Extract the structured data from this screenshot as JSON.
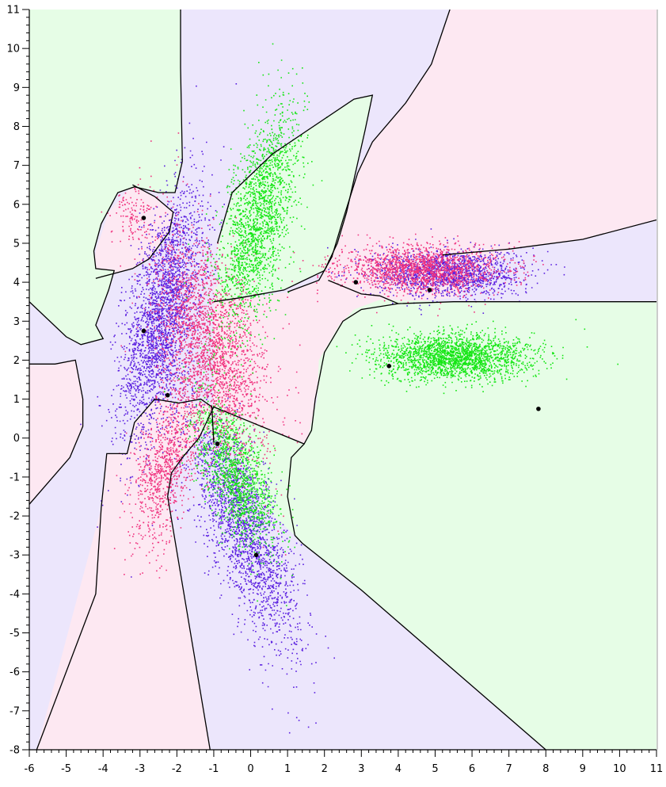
{
  "chart_data": {
    "type": "scatter",
    "title": "",
    "xlabel": "",
    "ylabel": "",
    "xlim": [
      -6,
      11
    ],
    "ylim": [
      -8,
      11
    ],
    "x_ticks": [
      "-6",
      "-5",
      "-4",
      "-3",
      "-2",
      "-1",
      "0",
      "1",
      "2",
      "3",
      "4",
      "5",
      "6",
      "7",
      "8",
      "9",
      "10",
      "11"
    ],
    "y_ticks": [
      "-8",
      "-7",
      "-6",
      "-5",
      "-4",
      "-3",
      "-2",
      "-1",
      "0",
      "1",
      "2",
      "3",
      "4",
      "5",
      "6",
      "7",
      "8",
      "9",
      "10",
      "11"
    ],
    "grid": false,
    "colors": {
      "blue": "#5a1fe0",
      "pink": "#f0337f",
      "green": "#14e614",
      "region_blue": "#ece6fc",
      "region_pink": "#fde8f2",
      "region_green": "#e6fde6",
      "boundary": "#000000",
      "center": "#000000"
    },
    "clusters": [
      {
        "color": "blue",
        "cx": -2.4,
        "cy": 3.2,
        "sx": 0.55,
        "sy": 1.55,
        "rho": 0.55,
        "n": 2600
      },
      {
        "color": "blue",
        "cx": -0.2,
        "cy": -2.3,
        "sx": 0.75,
        "sy": 1.5,
        "rho": -0.75,
        "n": 2100
      },
      {
        "color": "blue",
        "cx": 5.3,
        "cy": 4.25,
        "sx": 1.0,
        "sy": 0.3,
        "rho": 0.0,
        "n": 1600
      },
      {
        "color": "pink",
        "cx": -1.1,
        "cy": 2.3,
        "sx": 0.75,
        "sy": 1.4,
        "rho": -0.45,
        "n": 2500
      },
      {
        "color": "pink",
        "cx": -2.3,
        "cy": -0.7,
        "sx": 0.45,
        "sy": 1.0,
        "rho": 0.5,
        "n": 900
      },
      {
        "color": "pink",
        "cx": 4.6,
        "cy": 4.35,
        "sx": 1.1,
        "sy": 0.3,
        "rho": 0.0,
        "n": 1600
      },
      {
        "color": "pink",
        "cx": -3.2,
        "cy": 5.8,
        "sx": 0.3,
        "sy": 0.35,
        "rho": 0.0,
        "n": 120
      },
      {
        "color": "green",
        "cx": 0.2,
        "cy": 5.6,
        "sx": 0.55,
        "sy": 1.5,
        "rho": 0.6,
        "n": 1900
      },
      {
        "color": "green",
        "cx": -0.4,
        "cy": -1.0,
        "sx": 0.55,
        "sy": 0.9,
        "rho": -0.6,
        "n": 1300
      },
      {
        "color": "green",
        "cx": 5.5,
        "cy": 2.1,
        "sx": 1.05,
        "sy": 0.3,
        "rho": 0.0,
        "n": 2100
      }
    ],
    "centers": [
      {
        "x": -2.9,
        "y": 5.65
      },
      {
        "x": -2.9,
        "y": 2.75
      },
      {
        "x": -2.25,
        "y": 1.1
      },
      {
        "x": -0.9,
        "y": -0.15
      },
      {
        "x": 0.15,
        "y": -3.0
      },
      {
        "x": 2.85,
        "y": 4.0
      },
      {
        "x": 3.75,
        "y": 1.85
      },
      {
        "x": 4.85,
        "y": 3.8
      },
      {
        "x": 7.8,
        "y": 0.75
      }
    ],
    "regions": [
      {
        "color": "region_blue",
        "points": [
          [
            -6,
            11
          ],
          [
            11,
            11
          ],
          [
            11,
            -8
          ],
          [
            -6,
            -8
          ]
        ]
      },
      {
        "color": "region_pink",
        "points": [
          [
            -6,
            1.9
          ],
          [
            -5.3,
            1.9
          ],
          [
            -4.75,
            2.0
          ],
          [
            -4.55,
            1.0
          ],
          [
            -4.55,
            0.3
          ],
          [
            -4.9,
            -0.5
          ],
          [
            -6,
            -1.7
          ]
        ]
      },
      {
        "color": "region_pink",
        "points": [
          [
            -3.9,
            -0.4
          ],
          [
            -4.05,
            -1.8
          ],
          [
            -5.8,
            -8
          ],
          [
            -1.1,
            -8
          ],
          [
            -2.25,
            -1.5
          ],
          [
            -2.15,
            -0.9
          ],
          [
            -1.85,
            -0.5
          ],
          [
            -1.4,
            0.0
          ],
          [
            -1.0,
            0.8
          ],
          [
            -1.25,
            0.9
          ],
          [
            -1.95,
            0.9
          ],
          [
            -2.6,
            1.0
          ],
          [
            -3.15,
            0.4
          ],
          [
            -3.35,
            -0.4
          ]
        ]
      },
      {
        "color": "region_pink",
        "points": [
          [
            -3.2,
            6.5
          ],
          [
            -2.6,
            6.2
          ],
          [
            -2.1,
            5.8
          ],
          [
            -2.2,
            5.3
          ],
          [
            -2.75,
            4.6
          ],
          [
            -3.2,
            4.35
          ],
          [
            -4.3,
            4.1
          ],
          [
            -4.2,
            4.8
          ],
          [
            -3.85,
            5.8
          ]
        ]
      },
      {
        "color": "region_pink",
        "points": [
          [
            -1.0,
            0.8
          ],
          [
            -1.0,
            3.9
          ],
          [
            0.0,
            3.6
          ],
          [
            1.0,
            3.75
          ],
          [
            1.85,
            4.05
          ],
          [
            2.2,
            4.65
          ],
          [
            2.5,
            5.6
          ],
          [
            2.9,
            6.8
          ],
          [
            3.3,
            7.6
          ],
          [
            4.2,
            8.6
          ],
          [
            4.9,
            9.6
          ],
          [
            5.4,
            11
          ],
          [
            11,
            11
          ],
          [
            11,
            5.6
          ],
          [
            9.0,
            5.1
          ],
          [
            7.0,
            4.85
          ],
          [
            5.5,
            3.6
          ],
          [
            4.0,
            3.45
          ],
          [
            3.0,
            3.3
          ],
          [
            2.5,
            3.0
          ],
          [
            2.0,
            2.2
          ],
          [
            1.75,
            1.0
          ],
          [
            1.65,
            0.2
          ],
          [
            1.45,
            -0.15
          ]
        ]
      },
      {
        "color": "region_green",
        "points": [
          [
            -6,
            11
          ],
          [
            -1.9,
            11
          ],
          [
            -1.9,
            9.7
          ],
          [
            -1.85,
            7.1
          ],
          [
            -2.05,
            6.3
          ],
          [
            -2.5,
            6.3
          ],
          [
            -3.15,
            6.45
          ],
          [
            -3.6,
            6.3
          ],
          [
            -4.05,
            5.5
          ],
          [
            -4.25,
            4.8
          ],
          [
            -4.2,
            4.35
          ],
          [
            -3.7,
            4.3
          ],
          [
            -3.85,
            3.8
          ],
          [
            -4.2,
            2.9
          ],
          [
            -4.0,
            2.55
          ],
          [
            -4.6,
            2.4
          ],
          [
            -5.0,
            2.6
          ],
          [
            -6,
            3.5
          ]
        ]
      },
      {
        "color": "region_green",
        "points": [
          [
            -0.9,
            5.0
          ],
          [
            -0.5,
            6.3
          ],
          [
            0.6,
            7.3
          ],
          [
            2.8,
            8.7
          ],
          [
            3.3,
            8.8
          ],
          [
            3.1,
            7.9
          ],
          [
            2.6,
            5.8
          ],
          [
            2.35,
            5.0
          ],
          [
            2.0,
            4.3
          ],
          [
            0.9,
            3.8
          ],
          [
            -0.3,
            3.6
          ],
          [
            -0.9,
            3.5
          ]
        ]
      },
      {
        "color": "region_green",
        "points": [
          [
            11,
            3.5
          ],
          [
            5.5,
            3.5
          ],
          [
            3.5,
            3.55
          ],
          [
            2.8,
            3.3
          ],
          [
            2.4,
            2.9
          ],
          [
            1.85,
            2.0
          ],
          [
            1.8,
            1.0
          ],
          [
            1.55,
            0.0
          ],
          [
            1.45,
            -0.15
          ],
          [
            1.1,
            -0.5
          ],
          [
            1.0,
            -1.5
          ],
          [
            1.2,
            -2.5
          ],
          [
            1.4,
            -2.7
          ],
          [
            3.0,
            -3.9
          ],
          [
            8.0,
            -8
          ],
          [
            11,
            -8
          ]
        ]
      },
      {
        "color": "region_green",
        "points": [
          [
            -1.85,
            0.6
          ],
          [
            -1.0,
            0.8
          ],
          [
            1.45,
            -0.15
          ],
          [
            1.0,
            -1.5
          ],
          [
            1.2,
            -2.5
          ],
          [
            0.4,
            -1.8
          ],
          [
            -0.5,
            -0.3
          ],
          [
            -1.3,
            0.2
          ]
        ]
      }
    ],
    "boundaries": [
      [
        [
          -1.9,
          11
        ],
        [
          -1.9,
          9.5
        ],
        [
          -1.85,
          7.1
        ],
        [
          -2.05,
          6.3
        ],
        [
          -2.5,
          6.3
        ],
        [
          -3.15,
          6.45
        ],
        [
          -3.6,
          6.3
        ],
        [
          -4.05,
          5.5
        ],
        [
          -4.25,
          4.8
        ],
        [
          -4.2,
          4.35
        ],
        [
          -3.7,
          4.3
        ],
        [
          -3.85,
          3.8
        ],
        [
          -4.2,
          2.9
        ],
        [
          -4.0,
          2.55
        ],
        [
          -4.6,
          2.4
        ],
        [
          -5.0,
          2.6
        ],
        [
          -6,
          3.5
        ]
      ],
      [
        [
          -4.2,
          4.1
        ],
        [
          -3.2,
          4.35
        ],
        [
          -2.75,
          4.6
        ],
        [
          -2.2,
          5.3
        ],
        [
          -2.1,
          5.8
        ],
        [
          -2.6,
          6.2
        ],
        [
          -3.2,
          6.5
        ]
      ],
      [
        [
          -6,
          1.9
        ],
        [
          -5.3,
          1.9
        ],
        [
          -4.75,
          2.0
        ],
        [
          -4.55,
          1.0
        ],
        [
          -4.55,
          0.3
        ],
        [
          -4.9,
          -0.5
        ],
        [
          -6,
          -1.7
        ]
      ],
      [
        [
          -1.0,
          -0.1
        ],
        [
          -1.05,
          0.8
        ],
        [
          -1.35,
          1.0
        ],
        [
          -1.95,
          0.9
        ],
        [
          -2.6,
          1.0
        ],
        [
          -3.15,
          0.4
        ],
        [
          -3.35,
          -0.4
        ],
        [
          -3.9,
          -0.4
        ],
        [
          -4.05,
          -1.8
        ],
        [
          -4.2,
          -4.0
        ],
        [
          -5.8,
          -8
        ]
      ],
      [
        [
          -1.1,
          -8
        ],
        [
          -2.25,
          -1.5
        ],
        [
          -2.15,
          -0.9
        ],
        [
          -1.85,
          -0.5
        ],
        [
          -1.4,
          0.0
        ],
        [
          -1.0,
          0.8
        ],
        [
          1.45,
          -0.15
        ],
        [
          1.65,
          0.2
        ],
        [
          1.75,
          1.0
        ],
        [
          2.0,
          2.2
        ],
        [
          2.5,
          3.0
        ],
        [
          3.0,
          3.3
        ],
        [
          4.0,
          3.45
        ],
        [
          5.5,
          3.5
        ],
        [
          11,
          3.5
        ]
      ],
      [
        [
          -0.9,
          5.0
        ],
        [
          -0.5,
          6.3
        ],
        [
          0.6,
          7.3
        ],
        [
          2.8,
          8.7
        ],
        [
          3.3,
          8.8
        ],
        [
          3.1,
          7.9
        ],
        [
          2.6,
          5.8
        ],
        [
          2.35,
          5.0
        ],
        [
          2.0,
          4.3
        ],
        [
          0.9,
          3.8
        ],
        [
          -0.3,
          3.6
        ],
        [
          -1.0,
          3.5
        ]
      ],
      [
        [
          1.0,
          3.75
        ],
        [
          1.85,
          4.05
        ],
        [
          2.2,
          4.65
        ],
        [
          2.5,
          5.6
        ],
        [
          2.9,
          6.8
        ],
        [
          3.3,
          7.6
        ],
        [
          4.2,
          8.6
        ],
        [
          4.9,
          9.6
        ],
        [
          5.4,
          11
        ]
      ],
      [
        [
          2.1,
          4.05
        ],
        [
          3.0,
          3.7
        ],
        [
          3.5,
          3.65
        ],
        [
          4.0,
          3.45
        ]
      ],
      [
        [
          5.2,
          4.7
        ],
        [
          7.0,
          4.85
        ],
        [
          9.0,
          5.1
        ],
        [
          11,
          5.6
        ]
      ],
      [
        [
          1.45,
          -0.15
        ],
        [
          1.1,
          -0.5
        ],
        [
          1.0,
          -1.5
        ],
        [
          1.2,
          -2.5
        ],
        [
          1.4,
          -2.7
        ],
        [
          3.0,
          -3.9
        ],
        [
          8.0,
          -8
        ]
      ]
    ]
  }
}
